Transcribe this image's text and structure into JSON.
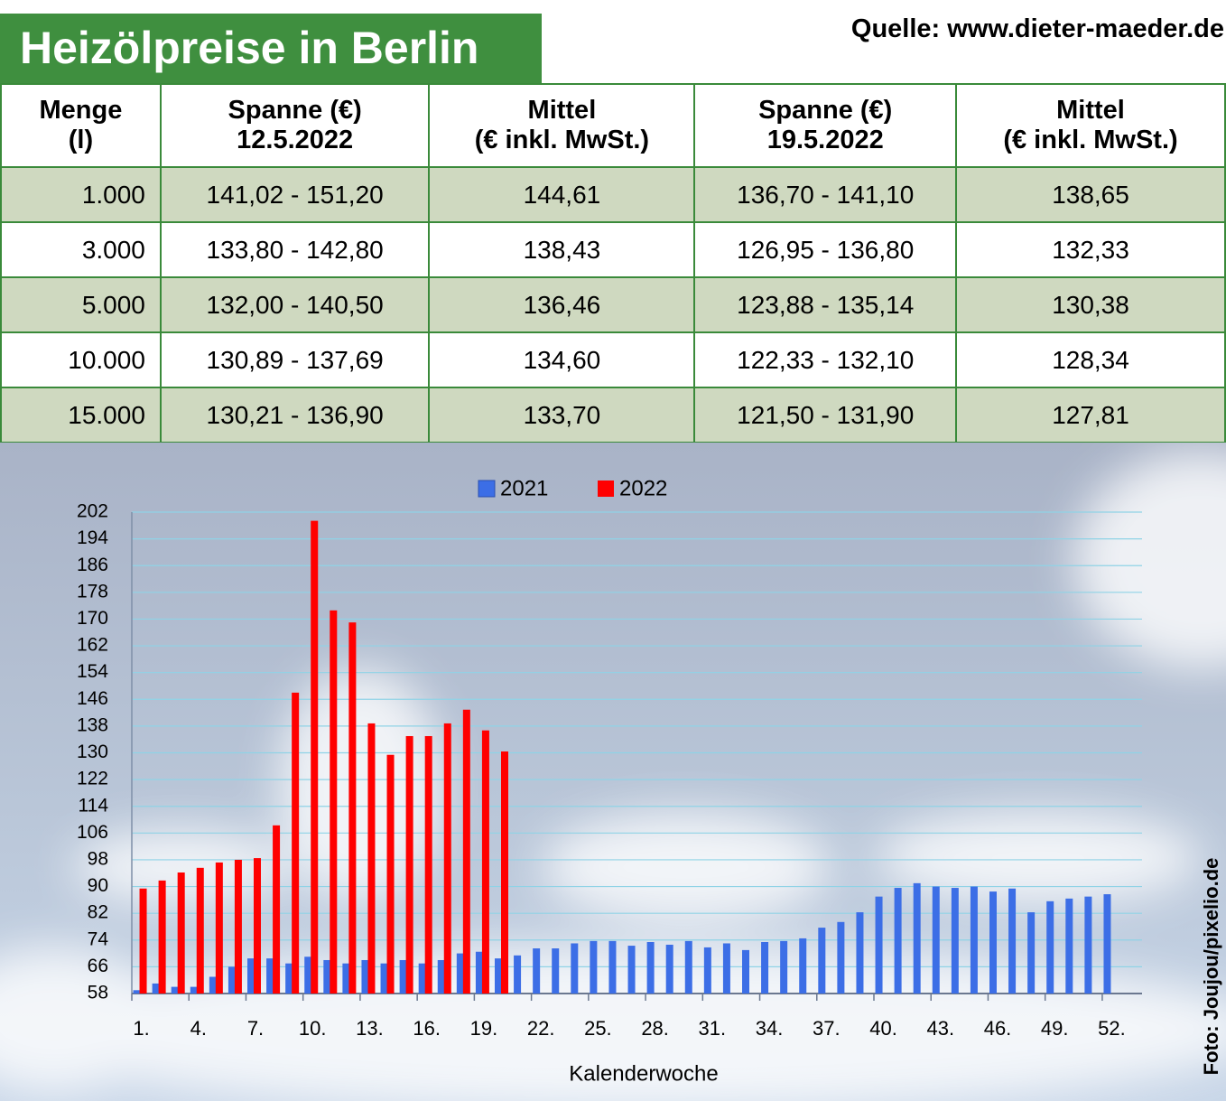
{
  "header": {
    "title": "Heizölpreise in Berlin",
    "source": "Quelle: www.dieter-maeder.de"
  },
  "table": {
    "columns": [
      [
        "Menge",
        "(l)"
      ],
      [
        "Spanne (€)",
        "12.5.2022"
      ],
      [
        "Mittel",
        "(€ inkl. MwSt.)"
      ],
      [
        "Spanne (€)",
        "19.5.2022"
      ],
      [
        "Mittel",
        "(€ inkl. MwSt.)"
      ]
    ],
    "rows": [
      [
        "1.000",
        "141,02 - 151,20",
        "144,61",
        "136,70 - 141,10",
        "138,65"
      ],
      [
        "3.000",
        "133,80 - 142,80",
        "138,43",
        "126,95 - 136,80",
        "132,33"
      ],
      [
        "5.000",
        "132,00 - 140,50",
        "136,46",
        "123,88 - 135,14",
        "130,38"
      ],
      [
        "10.000",
        "130,89 - 137,69",
        "134,60",
        "122,33 - 132,10",
        "128,34"
      ],
      [
        "15.000",
        "130,21 - 136,90",
        "133,70",
        "121,50 - 131,90",
        "127,81"
      ]
    ]
  },
  "chart_data": {
    "type": "bar",
    "x_label": "Kalenderwoche",
    "categories": [
      "1.",
      null,
      null,
      "4.",
      null,
      null,
      "7.",
      null,
      null,
      "10.",
      null,
      null,
      "13.",
      null,
      null,
      "16.",
      null,
      null,
      "19.",
      null,
      null,
      "22.",
      null,
      null,
      "25.",
      null,
      null,
      "28.",
      null,
      null,
      "31.",
      null,
      null,
      "34.",
      null,
      null,
      "37.",
      null,
      null,
      "40.",
      null,
      null,
      "43.",
      null,
      null,
      "46.",
      null,
      null,
      "49.",
      null,
      null,
      "52."
    ],
    "series": [
      {
        "name": "2021",
        "color": "#3c6ee6",
        "values": [
          59,
          61,
          60,
          60,
          63,
          66,
          68.5,
          68.5,
          67,
          69,
          68,
          67,
          68,
          67,
          68,
          67,
          68,
          70,
          70.5,
          68.5,
          69.4,
          71.5,
          71.5,
          73,
          73.7,
          73.7,
          72.3,
          73.4,
          72.6,
          73.7,
          71.8,
          73,
          71,
          73.4,
          73.7,
          74.5,
          77.7,
          79.4,
          82.3,
          87,
          89.6,
          91,
          90,
          89.6,
          90,
          88.5,
          89.4,
          82.3,
          85.6,
          86.4,
          87,
          87.7
        ]
      },
      {
        "name": "2022",
        "color": "#ff0000",
        "values": [
          89.4,
          91.8,
          94.2,
          95.6,
          97.2,
          98,
          98.5,
          108.3,
          148,
          199.4,
          172.6,
          169,
          138.8,
          129.4,
          135,
          135,
          138.8,
          142.9,
          136.7,
          130.4,
          null,
          null,
          null,
          null,
          null,
          null,
          null,
          null,
          null,
          null,
          null,
          null,
          null,
          null,
          null,
          null,
          null,
          null,
          null,
          null,
          null,
          null,
          null,
          null,
          null,
          null,
          null,
          null,
          null,
          null,
          null,
          null
        ]
      }
    ],
    "ylim": [
      58,
      202
    ],
    "yticks": [
      58,
      66,
      74,
      82,
      90,
      98,
      106,
      114,
      122,
      130,
      138,
      146,
      154,
      162,
      170,
      178,
      186,
      194,
      202
    ],
    "grid": true,
    "legend": "top"
  },
  "credit": "Foto: Joujou/pixelio.de"
}
